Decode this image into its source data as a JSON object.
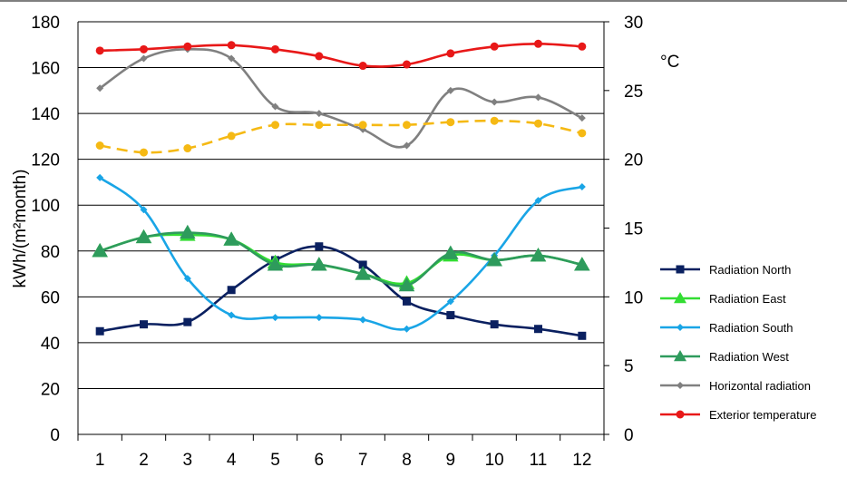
{
  "chart_data": {
    "type": "line",
    "categories": [
      "1",
      "2",
      "3",
      "4",
      "5",
      "6",
      "7",
      "8",
      "9",
      "10",
      "11",
      "12"
    ],
    "ylabel": "kWh/(m²month)",
    "y2label": "°C",
    "ylim": [
      0,
      180
    ],
    "yticks": [
      "0",
      "20",
      "40",
      "60",
      "80",
      "100",
      "120",
      "140",
      "160",
      "180"
    ],
    "y2lim": [
      0,
      30
    ],
    "y2ticks": [
      "0",
      "5",
      "10",
      "15",
      "20",
      "25",
      "30"
    ],
    "grid": "horizontal",
    "legend_position": "right",
    "series": [
      {
        "name": "Radiation North",
        "axis": "left",
        "color": "#0a2060",
        "marker": "square",
        "dashed": false,
        "values": [
          45,
          48,
          49,
          63,
          76,
          82,
          74,
          58,
          52,
          48,
          46,
          43
        ]
      },
      {
        "name": "Radiation East",
        "axis": "left",
        "color": "#33dd33",
        "marker": "triangle",
        "dashed": false,
        "values": [
          80,
          86,
          87,
          85,
          75,
          74,
          70,
          66,
          78,
          76,
          78,
          74
        ]
      },
      {
        "name": "Radiation South",
        "axis": "left",
        "color": "#19a5e6",
        "marker": "diamond",
        "dashed": false,
        "values": [
          112,
          98,
          68,
          52,
          51,
          51,
          50,
          46,
          58,
          78,
          102,
          108
        ]
      },
      {
        "name": "Radiation West",
        "axis": "left",
        "color": "#2e9b5c",
        "marker": "triangle",
        "dashed": false,
        "values": [
          80,
          86,
          88,
          85,
          74,
          74,
          70,
          65,
          79,
          76,
          78,
          74
        ]
      },
      {
        "name": "Horizontal radiation",
        "axis": "left",
        "color": "#808080",
        "marker": "diamond",
        "dashed": false,
        "values": [
          151,
          164,
          168,
          164,
          143,
          140,
          133,
          126,
          150,
          145,
          147,
          138
        ]
      },
      {
        "name": "Exterior temperature",
        "axis": "right",
        "color": "#e81818",
        "marker": "circle",
        "dashed": false,
        "values": [
          27.9,
          28.0,
          28.2,
          28.3,
          28.0,
          27.5,
          26.8,
          26.9,
          27.7,
          28.2,
          28.4,
          28.2
        ]
      },
      {
        "name": "",
        "axis": "right",
        "color": "#f5b914",
        "marker": "circle",
        "dashed": true,
        "in_legend": false,
        "values": [
          21.0,
          20.5,
          20.8,
          21.7,
          22.5,
          22.5,
          22.5,
          22.5,
          22.7,
          22.8,
          22.6,
          21.9
        ]
      }
    ]
  }
}
